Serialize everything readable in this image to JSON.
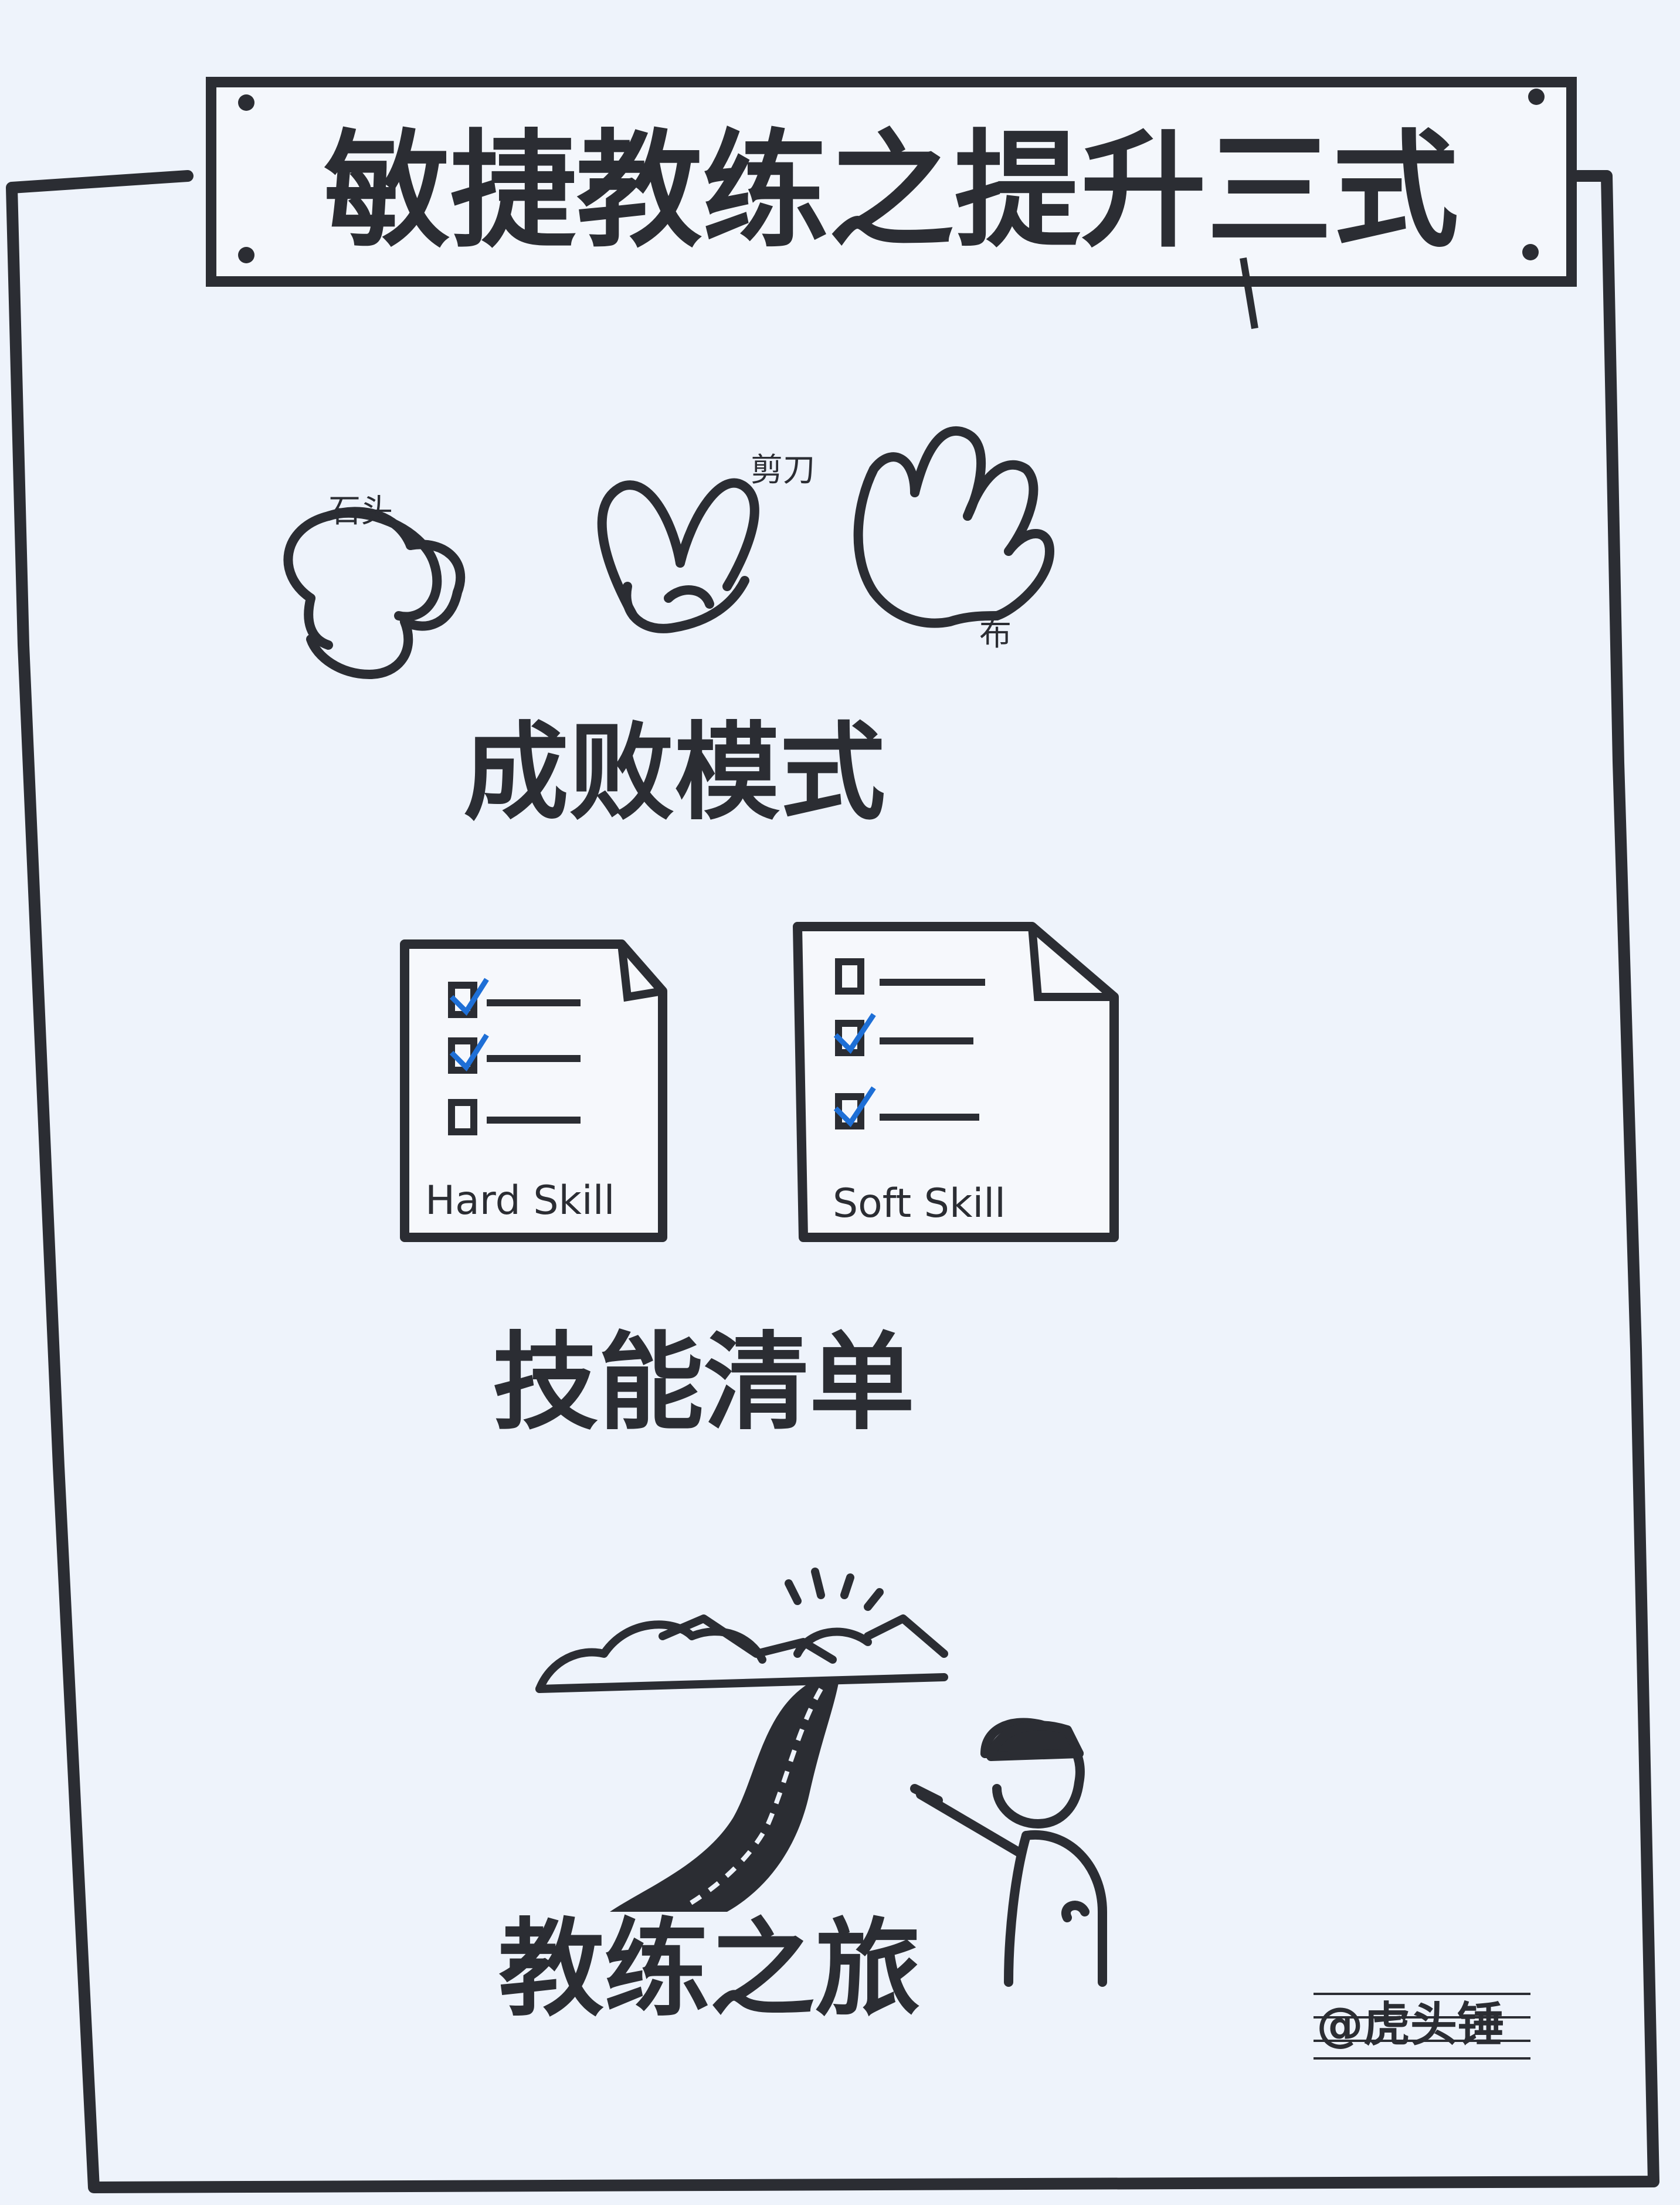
{
  "title": "敏捷教练之提升三式",
  "sections": [
    {
      "heading": "成败模式",
      "hand_labels": [
        "石头",
        "剪刀",
        "布"
      ]
    },
    {
      "heading": "技能清单",
      "cards": [
        {
          "label": "Hard Skill"
        },
        {
          "label": "Soft Skill"
        }
      ]
    },
    {
      "heading": "教练之旅"
    }
  ],
  "signature": "@虎头锤",
  "colors": {
    "ink": "#2b2d33",
    "check": "#1e6fd6",
    "paper": "#eef3fb"
  }
}
